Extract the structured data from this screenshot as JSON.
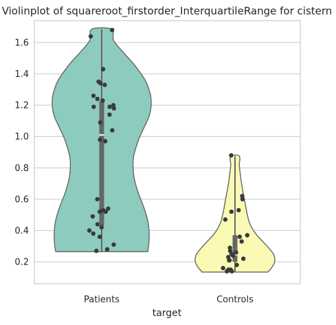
{
  "chart_data": {
    "type": "violin",
    "title": "Violinplot of squareroot_firstorder_InterquartileRange for cistern",
    "xlabel": "target",
    "ylabel": "",
    "categories": [
      "Patients",
      "Controls"
    ],
    "ylim": [
      0.06,
      1.74
    ],
    "yticks": [
      "0.2",
      "0.4",
      "0.6",
      "0.8",
      "1.0",
      "1.2",
      "1.4",
      "1.6"
    ],
    "grid": true,
    "colors": {
      "Patients": "#8ecbbf",
      "Controls": "#fafab5",
      "outline": "#666666",
      "points": "#3a3a3a",
      "grid": "#cccccc"
    },
    "groups": [
      {
        "name": "Patients",
        "min": 0.265,
        "max": 1.685,
        "q1": 0.43,
        "median": 1.01,
        "q3": 1.225,
        "points": [
          1.68,
          1.64,
          1.43,
          1.35,
          1.34,
          1.33,
          1.26,
          1.24,
          1.23,
          1.2,
          1.19,
          1.19,
          1.18,
          1.14,
          1.09,
          1.04,
          0.98,
          0.97,
          0.6,
          0.54,
          0.53,
          0.52,
          0.52,
          0.49,
          0.44,
          0.42,
          0.4,
          0.38,
          0.36,
          0.31,
          0.28,
          0.27
        ]
      },
      {
        "name": "Controls",
        "min": 0.135,
        "max": 0.875,
        "q1": 0.2,
        "median": 0.245,
        "q3": 0.37,
        "points": [
          0.88,
          0.62,
          0.6,
          0.53,
          0.52,
          0.47,
          0.37,
          0.36,
          0.33,
          0.29,
          0.27,
          0.26,
          0.25,
          0.24,
          0.23,
          0.22,
          0.21,
          0.21,
          0.18,
          0.16,
          0.15,
          0.15,
          0.14,
          0.14
        ]
      }
    ]
  }
}
